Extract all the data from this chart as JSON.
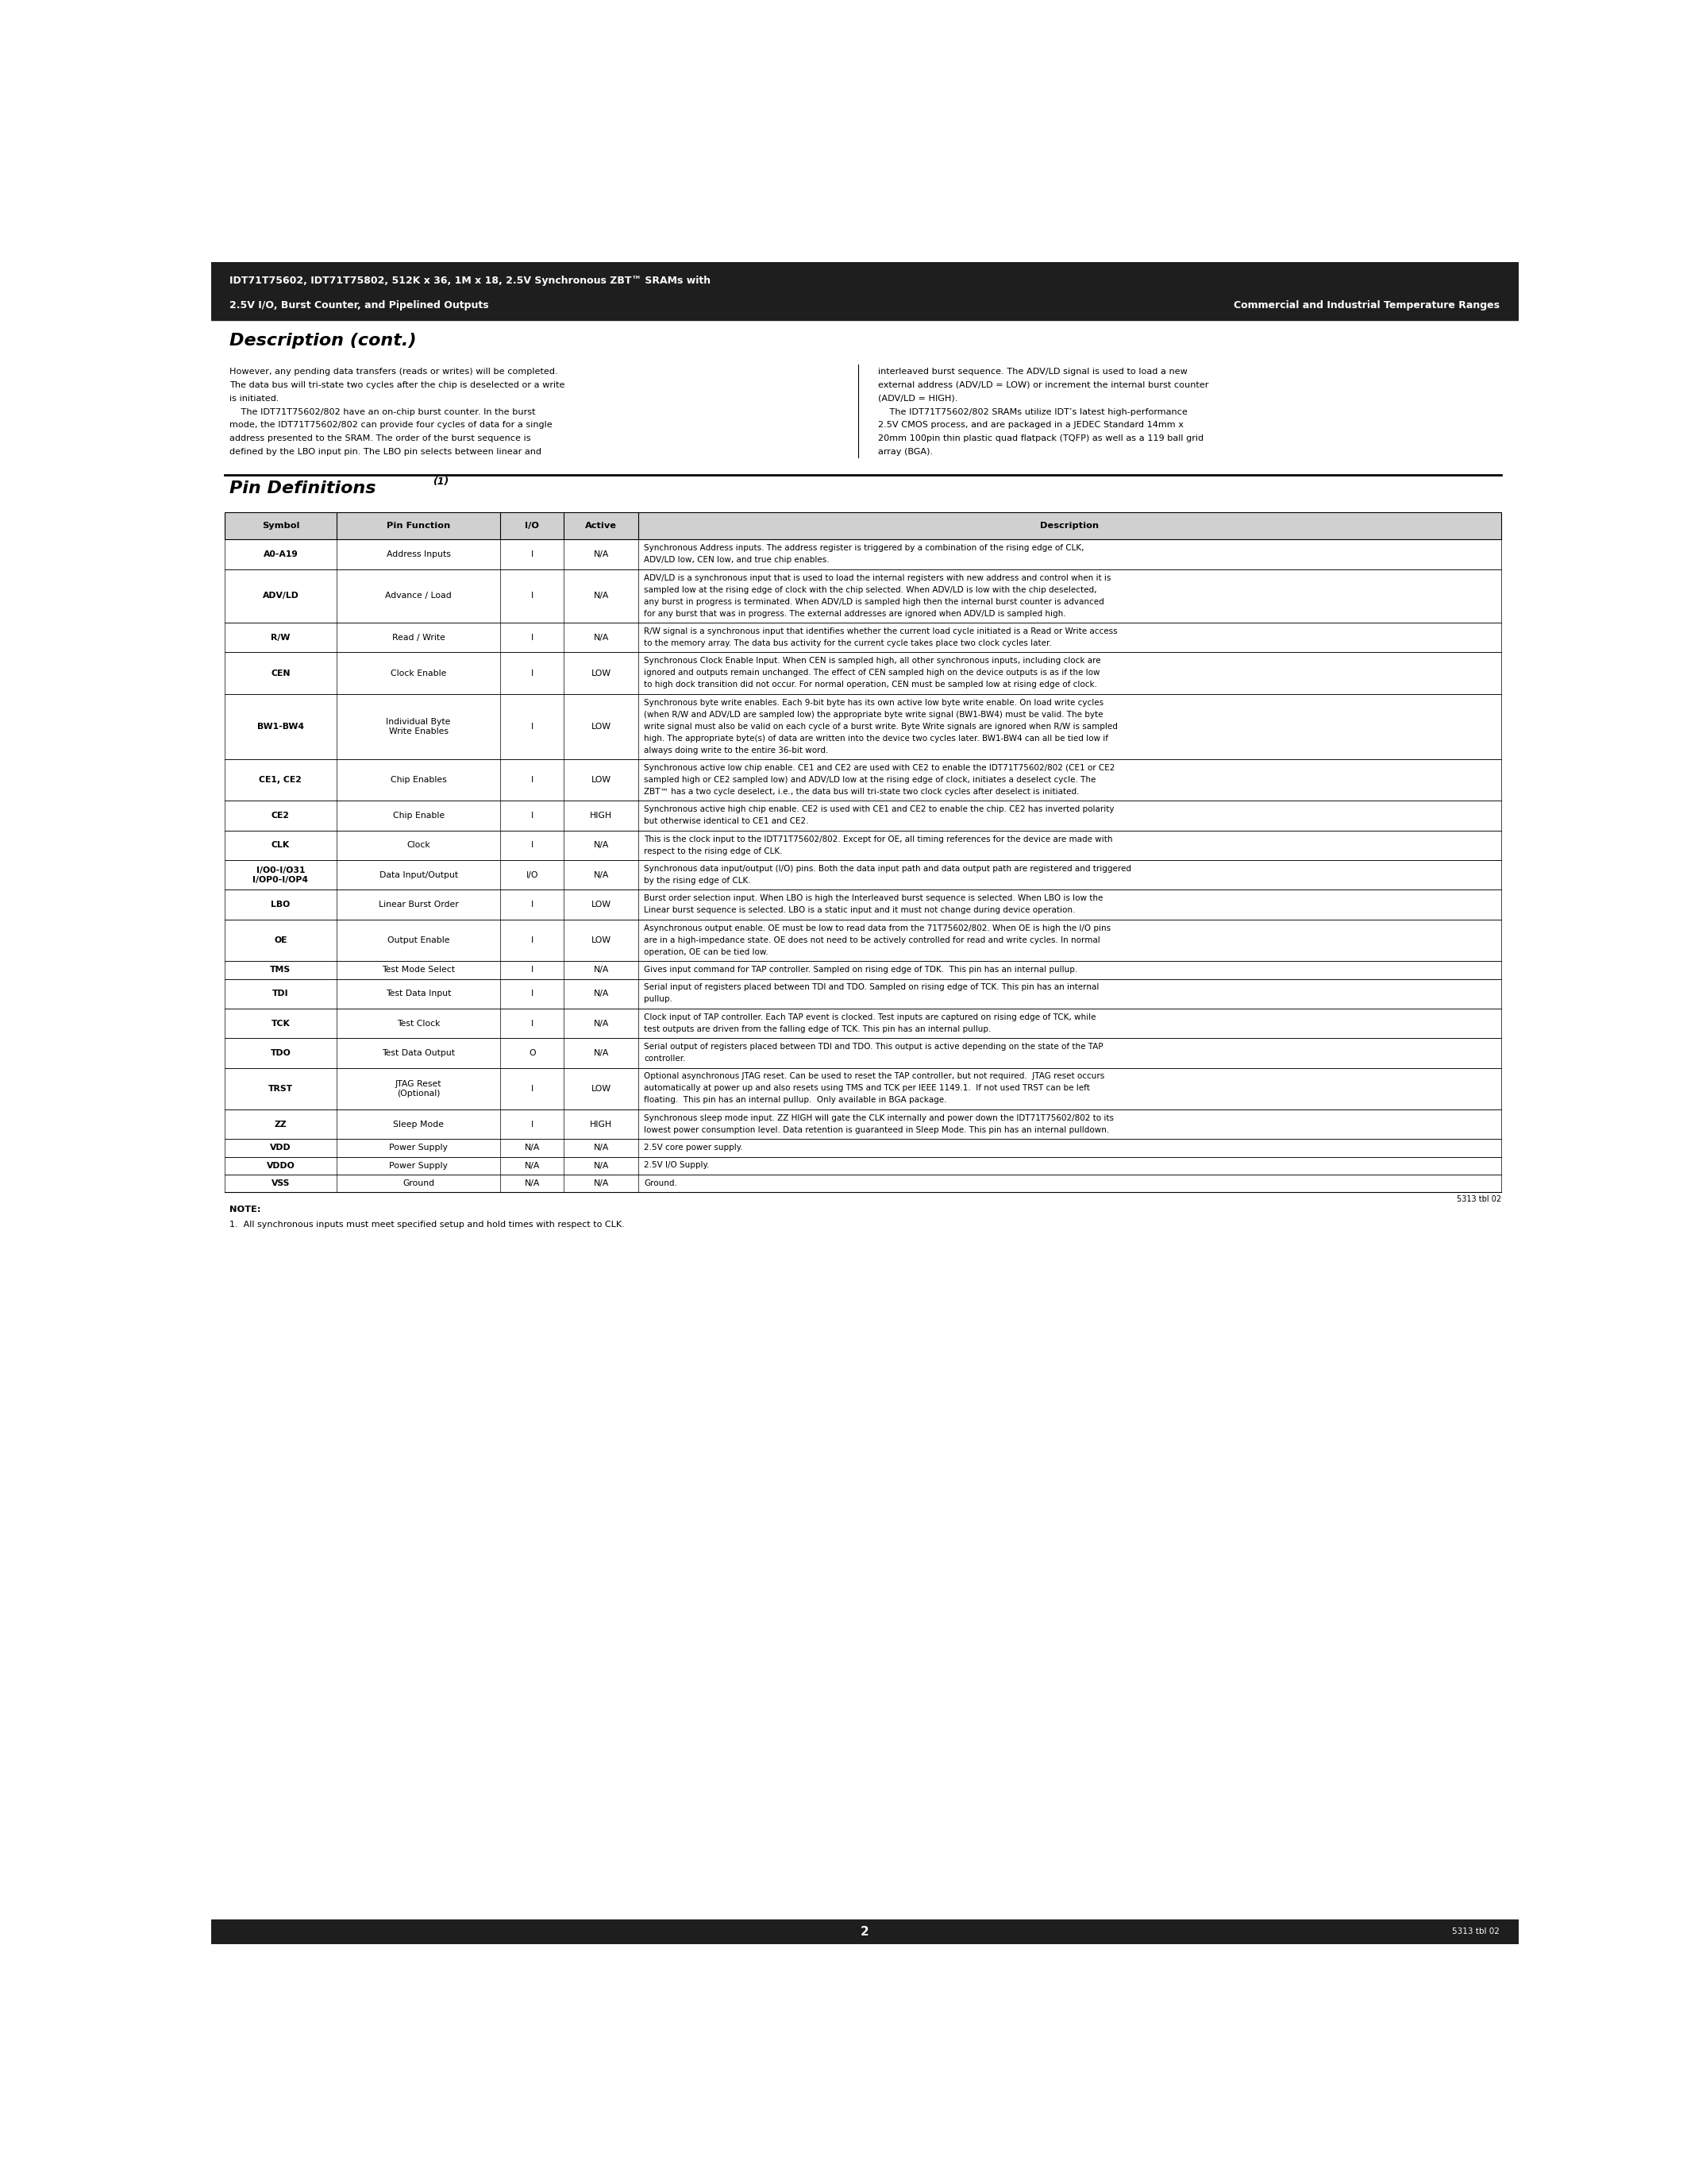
{
  "header_line1": "IDT71T75602, IDT71T75802, 512K x 36, 1M x 18, 2.5V Synchronous ZBT™ SRAMs with",
  "header_line2_left": "2.5V I/O, Burst Counter, and Pipelined Outputs",
  "header_line2_right": "Commercial and Industrial Temperature Ranges",
  "header_bg": "#1e1e1e",
  "section1_title": "Description (cont.)",
  "desc_left_col": [
    "However, any pending data transfers (reads or writes) will be completed.",
    "The data bus will tri-state two cycles after the chip is deselected or a write",
    "is initiated.",
    "    The IDT71T75602/802 have an on-chip burst counter. In the burst",
    "mode, the IDT71T75602/802 can provide four cycles of data for a single",
    "address presented to the SRAM. The order of the burst sequence is",
    "defined by the LBO input pin. The LBO pin selects between linear and"
  ],
  "desc_right_col": [
    "interleaved burst sequence. The ADV/LD signal is used to load a new",
    "external address (ADV/LD = LOW) or increment the internal burst counter",
    "(ADV/LD = HIGH).",
    "    The IDT71T75602/802 SRAMs utilize IDT’s latest high-performance",
    "2.5V CMOS process, and are packaged in a JEDEC Standard 14mm x",
    "20mm 100pin thin plastic quad flatpack (TQFP) as well as a 119 ball grid",
    "array (BGA)."
  ],
  "table_headers": [
    "Symbol",
    "Pin Function",
    "I/O",
    "Active",
    "Description"
  ],
  "table_rows": [
    {
      "symbol": "A0-A19",
      "function": "Address Inputs",
      "io": "I",
      "active": "N/A",
      "desc_wrapped": [
        "Synchronous Address inputs. The address register is triggered by a combination of the rising edge of CLK,",
        "ADV/LD low, CEN low, and true chip enables."
      ]
    },
    {
      "symbol": "ADV/LD",
      "function": "Advance / Load",
      "io": "I",
      "active": "N/A",
      "desc_wrapped": [
        "ADV/LD is a synchronous input that is used to load the internal registers with new address and control when it is",
        "sampled low at the rising edge of clock with the chip selected. When ADV/LD is low with the chip deselected,",
        "any burst in progress is terminated. When ADV/LD is sampled high then the internal burst counter is advanced",
        "for any burst that was in progress. The external addresses are ignored when ADV/LD is sampled high."
      ]
    },
    {
      "symbol": "R/W",
      "function": "Read / Write",
      "io": "I",
      "active": "N/A",
      "desc_wrapped": [
        "R/W signal is a synchronous input that identifies whether the current load cycle initiated is a Read or Write access",
        "to the memory array. The data bus activity for the current cycle takes place two clock cycles later."
      ]
    },
    {
      "symbol": "CEN",
      "function": "Clock Enable",
      "io": "I",
      "active": "LOW",
      "desc_wrapped": [
        "Synchronous Clock Enable Input. When CEN is sampled high, all other synchronous inputs, including clock are",
        "ignored and outputs remain unchanged. The effect of CEN sampled high on the device outputs is as if the low",
        "to high dock transition did not occur. For normal operation, CEN must be sampled low at rising edge of clock."
      ]
    },
    {
      "symbol": "BW1-BW4",
      "function": "Individual Byte\nWrite Enables",
      "io": "I",
      "active": "LOW",
      "desc_wrapped": [
        "Synchronous byte write enables. Each 9-bit byte has its own active low byte write enable. On load write cycles",
        "(when R/W and ADV/LD are sampled low) the appropriate byte write signal (BW1-BW4) must be valid. The byte",
        "write signal must also be valid on each cycle of a burst write. Byte Write signals are ignored when R/W is sampled",
        "high. The appropriate byte(s) of data are written into the device two cycles later. BW1-BW4 can all be tied low if",
        "always doing write to the entire 36-bit word."
      ]
    },
    {
      "symbol": "CE1, CE2",
      "function": "Chip Enables",
      "io": "I",
      "active": "LOW",
      "desc_wrapped": [
        "Synchronous active low chip enable. CE1 and CE2 are used with CE2 to enable the IDT71T75602/802 (CE1 or CE2",
        "sampled high or CE2 sampled low) and ADV/LD low at the rising edge of clock, initiates a deselect cycle. The",
        "ZBT™ has a two cycle deselect, i.e., the data bus will tri-state two clock cycles after deselect is initiated."
      ]
    },
    {
      "symbol": "CE2",
      "function": "Chip Enable",
      "io": "I",
      "active": "HIGH",
      "desc_wrapped": [
        "Synchronous active high chip enable. CE2 is used with CE1 and CE2 to enable the chip. CE2 has inverted polarity",
        "but otherwise identical to CE1 and CE2."
      ]
    },
    {
      "symbol": "CLK",
      "function": "Clock",
      "io": "I",
      "active": "N/A",
      "desc_wrapped": [
        "This is the clock input to the IDT71T75602/802. Except for OE, all timing references for the device are made with",
        "respect to the rising edge of CLK."
      ]
    },
    {
      "symbol": "I/O0-I/O31\nI/OP0-I/OP4",
      "function": "Data Input/Output",
      "io": "I/O",
      "active": "N/A",
      "desc_wrapped": [
        "Synchronous data input/output (I/O) pins. Both the data input path and data output path are registered and triggered",
        "by the rising edge of CLK."
      ]
    },
    {
      "symbol": "LBO",
      "function": "Linear Burst Order",
      "io": "I",
      "active": "LOW",
      "desc_wrapped": [
        "Burst order selection input. When LBO is high the Interleaved burst sequence is selected. When LBO is low the",
        "Linear burst sequence is selected. LBO is a static input and it must not change during device operation."
      ]
    },
    {
      "symbol": "OE",
      "function": "Output Enable",
      "io": "I",
      "active": "LOW",
      "desc_wrapped": [
        "Asynchronous output enable. OE must be low to read data from the 71T75602/802. When OE is high the I/O pins",
        "are in a high-impedance state. OE does not need to be actively controlled for read and write cycles. In normal",
        "operation, OE can be tied low."
      ]
    },
    {
      "symbol": "TMS",
      "function": "Test Mode Select",
      "io": "I",
      "active": "N/A",
      "desc_wrapped": [
        "Gives input command for TAP controller. Sampled on rising edge of TDK.  This pin has an internal pullup."
      ]
    },
    {
      "symbol": "TDI",
      "function": "Test Data Input",
      "io": "I",
      "active": "N/A",
      "desc_wrapped": [
        "Serial input of registers placed between TDI and TDO. Sampled on rising edge of TCK. This pin has an internal",
        "pullup."
      ]
    },
    {
      "symbol": "TCK",
      "function": "Test Clock",
      "io": "I",
      "active": "N/A",
      "desc_wrapped": [
        "Clock input of TAP controller. Each TAP event is clocked. Test inputs are captured on rising edge of TCK, while",
        "test outputs are driven from the falling edge of TCK. This pin has an internal pullup."
      ]
    },
    {
      "symbol": "TDO",
      "function": "Test Data Output",
      "io": "O",
      "active": "N/A",
      "desc_wrapped": [
        "Serial output of registers placed between TDI and TDO. This output is active depending on the state of the TAP",
        "controller."
      ]
    },
    {
      "symbol": "TRST",
      "function": "JTAG Reset\n(Optional)",
      "io": "I",
      "active": "LOW",
      "desc_wrapped": [
        "Optional asynchronous JTAG reset. Can be used to reset the TAP controller, but not required.  JTAG reset occurs",
        "automatically at power up and also resets using TMS and TCK per IEEE 1149.1.  If not used TRST can be left",
        "floating.  This pin has an internal pullup.  Only available in BGA package."
      ]
    },
    {
      "symbol": "ZZ",
      "function": "Sleep Mode",
      "io": "I",
      "active": "HIGH",
      "desc_wrapped": [
        "Synchronous sleep mode input. ZZ HIGH will gate the CLK internally and power down the IDT71T75602/802 to its",
        "lowest power consumption level. Data retention is guaranteed in Sleep Mode. This pin has an internal pulldown."
      ]
    },
    {
      "symbol": "VDD",
      "function": "Power Supply",
      "io": "N/A",
      "active": "N/A",
      "desc_wrapped": [
        "2.5V core power supply."
      ]
    },
    {
      "symbol": "VDDO",
      "function": "Power Supply",
      "io": "N/A",
      "active": "N/A",
      "desc_wrapped": [
        "2.5V I/O Supply."
      ]
    },
    {
      "symbol": "VSS",
      "function": "Ground",
      "io": "N/A",
      "active": "N/A",
      "desc_wrapped": [
        "Ground."
      ]
    }
  ],
  "note_line1": "NOTE:",
  "note_line2": "1.  All synchronous inputs must meet specified setup and hold times with respect to CLK.",
  "footer_num": "2",
  "footer_code": "5313 tbl 02"
}
